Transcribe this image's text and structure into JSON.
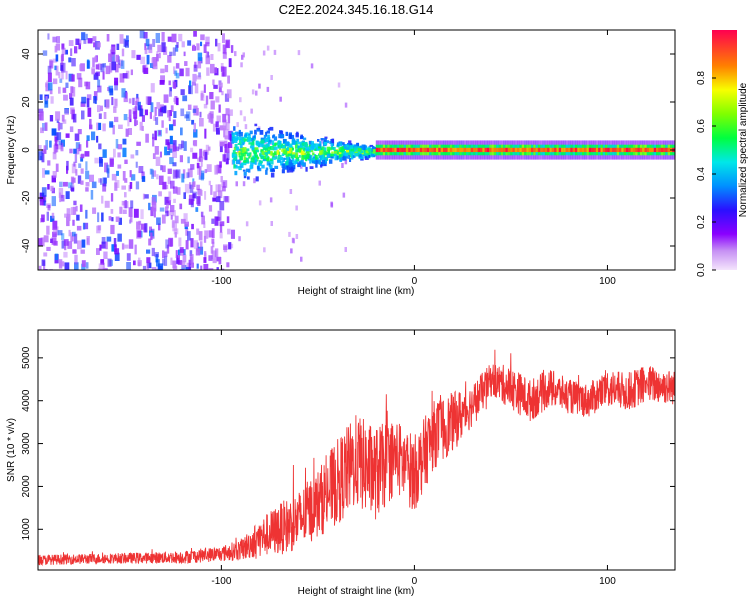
{
  "figure": {
    "title": "C2E2.2024.345.16.18.G14"
  },
  "chart_data": [
    {
      "type": "heatmap",
      "title": "C2E2.2024.345.16.18.G14",
      "xlabel": "Height of straight line (km)",
      "ylabel": "Frequency (Hz)",
      "xlim": [
        -195,
        135
      ],
      "ylim": [
        -50,
        50
      ],
      "xticks": [
        -100,
        0,
        100
      ],
      "yticks": [
        -40,
        -20,
        0,
        20,
        40
      ],
      "colorbar": {
        "label": "Normalized spectral amplitude",
        "range": [
          0,
          1
        ],
        "ticks": [
          0.0,
          0.2,
          0.4,
          0.6,
          0.8
        ],
        "colormap": [
          "#e8c8f8",
          "#7a00ff",
          "#0040ff",
          "#00d0ff",
          "#00ff40",
          "#f8ff00",
          "#ff8000",
          "#ff0040"
        ]
      },
      "regions": [
        {
          "name": "diffuse noise",
          "x_range": [
            -195,
            -95
          ],
          "freq_range": [
            -50,
            50
          ],
          "amplitude": [
            0.05,
            0.35
          ]
        },
        {
          "name": "transition spread",
          "x_range": [
            -95,
            -20
          ],
          "freq_range": [
            -12,
            10
          ],
          "amplitude": [
            0.2,
            0.7
          ]
        },
        {
          "name": "narrow carrier",
          "x_range": [
            -20,
            135
          ],
          "freq_center": 0,
          "amplitude": [
            0.8,
            1.0
          ]
        }
      ]
    },
    {
      "type": "line",
      "xlabel": "Height of straight line (km)",
      "ylabel": "SNR (10 * v/v)",
      "xlim": [
        -195,
        135
      ],
      "ylim": [
        50,
        5650
      ],
      "xticks": [
        -100,
        0,
        100
      ],
      "yticks": [
        1000,
        2000,
        3000,
        4000,
        5000
      ],
      "color": "#ee3333",
      "series": [
        {
          "name": "SNR",
          "x": [
            -195,
            -180,
            -160,
            -140,
            -120,
            -100,
            -90,
            -80,
            -70,
            -60,
            -50,
            -40,
            -30,
            -20,
            -10,
            0,
            10,
            20,
            30,
            40,
            50,
            60,
            70,
            80,
            90,
            100,
            110,
            120,
            135
          ],
          "y": [
            280,
            300,
            320,
            330,
            350,
            430,
            520,
            800,
            1000,
            1200,
            1600,
            2100,
            2600,
            2300,
            2700,
            2300,
            3200,
            3500,
            3900,
            4500,
            4300,
            4000,
            4300,
            4100,
            4000,
            4300,
            4200,
            4400,
            4300
          ],
          "spread": [
            120,
            120,
            120,
            130,
            150,
            180,
            250,
            450,
            600,
            700,
            800,
            1000,
            1100,
            1100,
            900,
            900,
            800,
            700,
            500,
            400,
            500,
            500,
            450,
            400,
            400,
            450,
            450,
            450,
            400
          ]
        }
      ]
    }
  ]
}
